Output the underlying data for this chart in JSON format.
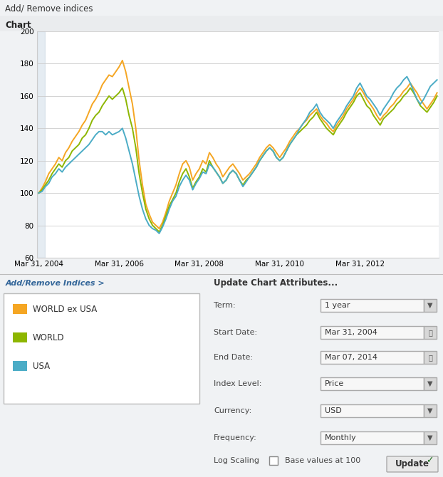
{
  "title_bar": "Add/ Remove indices",
  "chart_label": "Chart",
  "ylim": [
    60,
    200
  ],
  "yticks": [
    60,
    80,
    100,
    120,
    140,
    160,
    180,
    200
  ],
  "x_tick_labels": [
    "Mar 31, 2004",
    "Mar 31, 2006",
    "Mar 31, 2008",
    "Mar 31, 2010",
    "Mar 31, 2012"
  ],
  "x_tick_positions": [
    0,
    24,
    48,
    72,
    96
  ],
  "color_world_ex_usa": "#F5A623",
  "color_world": "#8DB600",
  "color_usa": "#4BACC6",
  "legend_entries": [
    "WORLD ex USA",
    "WORLD",
    "USA"
  ],
  "bg_color": "#F0F2F4",
  "title_bar_color": "#D6D9DD",
  "chart_bg": "#FFFFFF",
  "border_color": "#BBBBBB",
  "bottom_section": {
    "add_remove": "Add/Remove Indices >",
    "update_title": "Update Chart Attributes...",
    "term_label": "Term:",
    "term_value": "1 year",
    "start_label": "Start Date:",
    "start_value": "Mar 31, 2004",
    "end_label": "End Date:",
    "end_value": "Mar 07, 2014",
    "index_label": "Index Level:",
    "index_value": "Price",
    "currency_label": "Currency:",
    "currency_value": "USD",
    "freq_label": "Frequency:",
    "freq_value": "Monthly",
    "log_label": "Log Scaling",
    "base_label": "Base values at 100",
    "update_btn": "Update"
  },
  "world_ex_usa": [
    100,
    103,
    107,
    112,
    115,
    118,
    122,
    120,
    125,
    128,
    132,
    135,
    138,
    142,
    145,
    150,
    155,
    158,
    162,
    167,
    170,
    173,
    172,
    175,
    178,
    182,
    175,
    165,
    155,
    140,
    120,
    105,
    93,
    87,
    82,
    80,
    78,
    82,
    88,
    95,
    100,
    105,
    112,
    118,
    120,
    116,
    108,
    112,
    115,
    120,
    118,
    125,
    122,
    118,
    115,
    110,
    113,
    116,
    118,
    115,
    112,
    108,
    110,
    112,
    115,
    118,
    122,
    125,
    128,
    130,
    128,
    125,
    122,
    125,
    128,
    132,
    135,
    138,
    140,
    143,
    145,
    148,
    150,
    152,
    148,
    145,
    143,
    140,
    138,
    142,
    145,
    148,
    152,
    155,
    158,
    162,
    165,
    162,
    158,
    155,
    152,
    148,
    145,
    148,
    150,
    153,
    155,
    158,
    160,
    163,
    165,
    168,
    165,
    162,
    158,
    155,
    152,
    155,
    158,
    162
  ],
  "world": [
    100,
    102,
    105,
    108,
    112,
    115,
    118,
    116,
    120,
    122,
    126,
    128,
    130,
    134,
    136,
    140,
    145,
    148,
    150,
    154,
    157,
    160,
    158,
    160,
    162,
    165,
    158,
    148,
    140,
    128,
    112,
    100,
    90,
    84,
    80,
    78,
    76,
    80,
    86,
    92,
    96,
    100,
    107,
    112,
    115,
    110,
    103,
    107,
    110,
    115,
    113,
    120,
    116,
    113,
    110,
    106,
    108,
    112,
    114,
    112,
    108,
    105,
    108,
    110,
    113,
    116,
    120,
    123,
    126,
    128,
    126,
    122,
    120,
    122,
    126,
    130,
    133,
    136,
    138,
    140,
    142,
    145,
    147,
    150,
    146,
    143,
    140,
    138,
    136,
    140,
    143,
    146,
    150,
    153,
    156,
    160,
    162,
    158,
    154,
    152,
    148,
    145,
    142,
    146,
    148,
    150,
    152,
    155,
    157,
    160,
    162,
    165,
    162,
    158,
    154,
    152,
    150,
    153,
    156,
    160
  ],
  "usa": [
    100,
    101,
    104,
    106,
    110,
    112,
    115,
    113,
    116,
    118,
    120,
    122,
    124,
    126,
    128,
    130,
    133,
    136,
    138,
    138,
    136,
    138,
    136,
    137,
    138,
    140,
    134,
    126,
    118,
    108,
    98,
    90,
    84,
    80,
    78,
    77,
    75,
    79,
    84,
    90,
    95,
    98,
    104,
    108,
    111,
    108,
    102,
    106,
    109,
    113,
    112,
    118,
    116,
    113,
    110,
    106,
    108,
    112,
    114,
    112,
    108,
    104,
    107,
    110,
    113,
    116,
    120,
    123,
    126,
    128,
    126,
    122,
    120,
    122,
    126,
    130,
    133,
    136,
    140,
    143,
    146,
    150,
    152,
    155,
    150,
    147,
    145,
    143,
    140,
    144,
    147,
    150,
    154,
    157,
    160,
    165,
    168,
    164,
    160,
    158,
    155,
    152,
    148,
    152,
    155,
    158,
    162,
    165,
    167,
    170,
    172,
    168,
    163,
    158,
    155,
    158,
    162,
    166,
    168,
    170
  ]
}
